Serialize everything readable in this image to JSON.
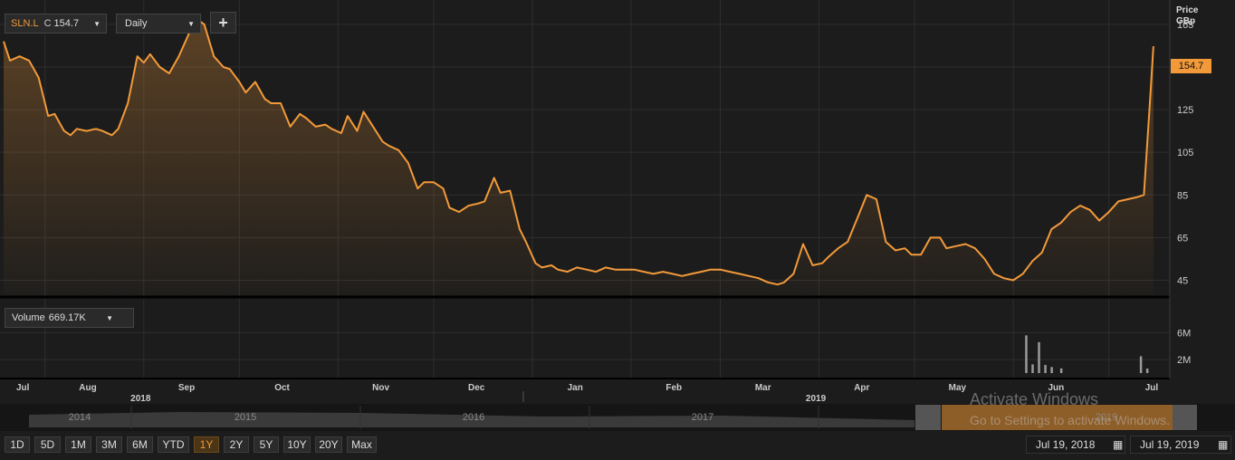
{
  "instrument": {
    "symbol": "SLN.L",
    "close_label": "C",
    "close_value": "154.7"
  },
  "interval": {
    "selected": "Daily"
  },
  "add_button": {
    "label": "+"
  },
  "volume_selector": {
    "label": "Volume",
    "value": "669.17K"
  },
  "price_axis": {
    "title_line1": "Price",
    "title_line2": "GBp",
    "last_price_tag": "154.7"
  },
  "range_buttons": [
    {
      "label": "1D",
      "active": false
    },
    {
      "label": "5D",
      "active": false
    },
    {
      "label": "1M",
      "active": false
    },
    {
      "label": "3M",
      "active": false
    },
    {
      "label": "6M",
      "active": false
    },
    {
      "label": "YTD",
      "active": false
    },
    {
      "label": "1Y",
      "active": true
    },
    {
      "label": "2Y",
      "active": false
    },
    {
      "label": "5Y",
      "active": false
    },
    {
      "label": "10Y",
      "active": false
    },
    {
      "label": "20Y",
      "active": false
    },
    {
      "label": "Max",
      "active": false
    }
  ],
  "date_range": {
    "start": "Jul 19, 2018",
    "end": "Jul 19, 2019"
  },
  "navigator_years": [
    "2014",
    "2015",
    "2016",
    "2017",
    "2019"
  ],
  "watermark": {
    "line1": "Activate Windows",
    "line2": "Go to Settings to activate Windows."
  },
  "colors": {
    "price_line": "#f29a3a",
    "background": "#1c1c1c",
    "grid": "#2e2e2e",
    "volume_bar": "#9a9a9a"
  },
  "chart_data": {
    "type": "area",
    "title": "",
    "xlabel": "",
    "ylabel": "Price GBp",
    "grid": true,
    "legend": "none",
    "ylim": [
      38,
      173
    ],
    "y_ticks": [
      45,
      65,
      85,
      105,
      125,
      145,
      165
    ],
    "x_month_labels": [
      "Jul",
      "Aug",
      "Sep",
      "Oct",
      "Nov",
      "Dec",
      "Jan",
      "Feb",
      "Mar",
      "Apr",
      "May",
      "Jun",
      "Jul"
    ],
    "x_year_labels": [
      "2018",
      "2019"
    ],
    "x_date_range": [
      "2018-07-19",
      "2019-07-19"
    ],
    "series": [
      {
        "points": [
          [
            "2018-07-19",
            157
          ],
          [
            "2018-07-21",
            148
          ],
          [
            "2018-07-24",
            150
          ],
          [
            "2018-07-27",
            148
          ],
          [
            "2018-07-30",
            140
          ],
          [
            "2018-08-02",
            122
          ],
          [
            "2018-08-04",
            123
          ],
          [
            "2018-08-07",
            115
          ],
          [
            "2018-08-09",
            113
          ],
          [
            "2018-08-11",
            116
          ],
          [
            "2018-08-14",
            115
          ],
          [
            "2018-08-17",
            116
          ],
          [
            "2018-08-19",
            115
          ],
          [
            "2018-08-22",
            113
          ],
          [
            "2018-08-24",
            116
          ],
          [
            "2018-08-27",
            128
          ],
          [
            "2018-08-30",
            150
          ],
          [
            "2018-09-01",
            147
          ],
          [
            "2018-09-03",
            151
          ],
          [
            "2018-09-06",
            145
          ],
          [
            "2018-09-09",
            142
          ],
          [
            "2018-09-12",
            150
          ],
          [
            "2018-09-15",
            160
          ],
          [
            "2018-09-17",
            168
          ],
          [
            "2018-09-20",
            165
          ],
          [
            "2018-09-23",
            150
          ],
          [
            "2018-09-26",
            145
          ],
          [
            "2018-09-28",
            144
          ],
          [
            "2018-10-01",
            138
          ],
          [
            "2018-10-03",
            133
          ],
          [
            "2018-10-06",
            138
          ],
          [
            "2018-10-09",
            130
          ],
          [
            "2018-10-11",
            128
          ],
          [
            "2018-10-14",
            128
          ],
          [
            "2018-10-17",
            117
          ],
          [
            "2018-10-20",
            123
          ],
          [
            "2018-10-22",
            121
          ],
          [
            "2018-10-25",
            117
          ],
          [
            "2018-10-28",
            118
          ],
          [
            "2018-10-30",
            116
          ],
          [
            "2018-11-02",
            114
          ],
          [
            "2018-11-04",
            122
          ],
          [
            "2018-11-07",
            115
          ],
          [
            "2018-11-09",
            124
          ],
          [
            "2018-11-12",
            117
          ],
          [
            "2018-11-15",
            110
          ],
          [
            "2018-11-17",
            108
          ],
          [
            "2018-11-20",
            106
          ],
          [
            "2018-11-23",
            100
          ],
          [
            "2018-11-26",
            88
          ],
          [
            "2018-11-28",
            91
          ],
          [
            "2018-12-01",
            91
          ],
          [
            "2018-12-04",
            88
          ],
          [
            "2018-12-06",
            79
          ],
          [
            "2018-12-09",
            77
          ],
          [
            "2018-12-12",
            80
          ],
          [
            "2018-12-15",
            81
          ],
          [
            "2018-12-17",
            82
          ],
          [
            "2018-12-20",
            93
          ],
          [
            "2018-12-22",
            86
          ],
          [
            "2018-12-25",
            87
          ],
          [
            "2018-12-28",
            69
          ],
          [
            "2018-12-30",
            63
          ],
          [
            "2019-01-02",
            53
          ],
          [
            "2019-01-04",
            51
          ],
          [
            "2019-01-07",
            52
          ],
          [
            "2019-01-09",
            50
          ],
          [
            "2019-01-12",
            49
          ],
          [
            "2019-01-15",
            51
          ],
          [
            "2019-01-18",
            50
          ],
          [
            "2019-01-21",
            49
          ],
          [
            "2019-01-24",
            51
          ],
          [
            "2019-01-27",
            50
          ],
          [
            "2019-01-30",
            50
          ],
          [
            "2019-02-02",
            50
          ],
          [
            "2019-02-05",
            49
          ],
          [
            "2019-02-08",
            48
          ],
          [
            "2019-02-11",
            49
          ],
          [
            "2019-02-14",
            48
          ],
          [
            "2019-02-17",
            47
          ],
          [
            "2019-02-20",
            48
          ],
          [
            "2019-02-23",
            49
          ],
          [
            "2019-02-26",
            50
          ],
          [
            "2019-03-01",
            50
          ],
          [
            "2019-03-04",
            49
          ],
          [
            "2019-03-07",
            48
          ],
          [
            "2019-03-10",
            47
          ],
          [
            "2019-03-13",
            46
          ],
          [
            "2019-03-16",
            44
          ],
          [
            "2019-03-19",
            43
          ],
          [
            "2019-03-21",
            44
          ],
          [
            "2019-03-24",
            48
          ],
          [
            "2019-03-27",
            62
          ],
          [
            "2019-03-30",
            52
          ],
          [
            "2019-04-02",
            53
          ],
          [
            "2019-04-04",
            56
          ],
          [
            "2019-04-07",
            60
          ],
          [
            "2019-04-10",
            63
          ],
          [
            "2019-04-13",
            74
          ],
          [
            "2019-04-16",
            85
          ],
          [
            "2019-04-19",
            83
          ],
          [
            "2019-04-22",
            63
          ],
          [
            "2019-04-25",
            59
          ],
          [
            "2019-04-28",
            60
          ],
          [
            "2019-04-30",
            57
          ],
          [
            "2019-05-03",
            57
          ],
          [
            "2019-05-06",
            65
          ],
          [
            "2019-05-09",
            65
          ],
          [
            "2019-05-11",
            60
          ],
          [
            "2019-05-14",
            61
          ],
          [
            "2019-05-17",
            62
          ],
          [
            "2019-05-20",
            60
          ],
          [
            "2019-05-23",
            55
          ],
          [
            "2019-05-26",
            48
          ],
          [
            "2019-05-29",
            46
          ],
          [
            "2019-06-01",
            45
          ],
          [
            "2019-06-04",
            48
          ],
          [
            "2019-06-07",
            54
          ],
          [
            "2019-06-10",
            58
          ],
          [
            "2019-06-13",
            69
          ],
          [
            "2019-06-16",
            72
          ],
          [
            "2019-06-19",
            77
          ],
          [
            "2019-06-22",
            80
          ],
          [
            "2019-06-25",
            78
          ],
          [
            "2019-06-28",
            73
          ],
          [
            "2019-07-01",
            77
          ],
          [
            "2019-07-04",
            82
          ],
          [
            "2019-07-07",
            83
          ],
          [
            "2019-07-10",
            84
          ],
          [
            "2019-07-12",
            85
          ],
          [
            "2019-07-14",
            131
          ],
          [
            "2019-07-15",
            154.7
          ]
        ]
      }
    ],
    "volume": {
      "y_ticks": [
        "2M",
        "6M"
      ],
      "ylim": [
        0,
        7000000
      ],
      "points": [
        [
          "2019-06-05",
          5600000
        ],
        [
          "2019-06-07",
          1300000
        ],
        [
          "2019-06-09",
          4600000
        ],
        [
          "2019-06-11",
          1200000
        ],
        [
          "2019-06-13",
          900000
        ],
        [
          "2019-06-16",
          700000
        ],
        [
          "2019-07-11",
          2500000
        ],
        [
          "2019-07-13",
          669170
        ]
      ]
    }
  }
}
